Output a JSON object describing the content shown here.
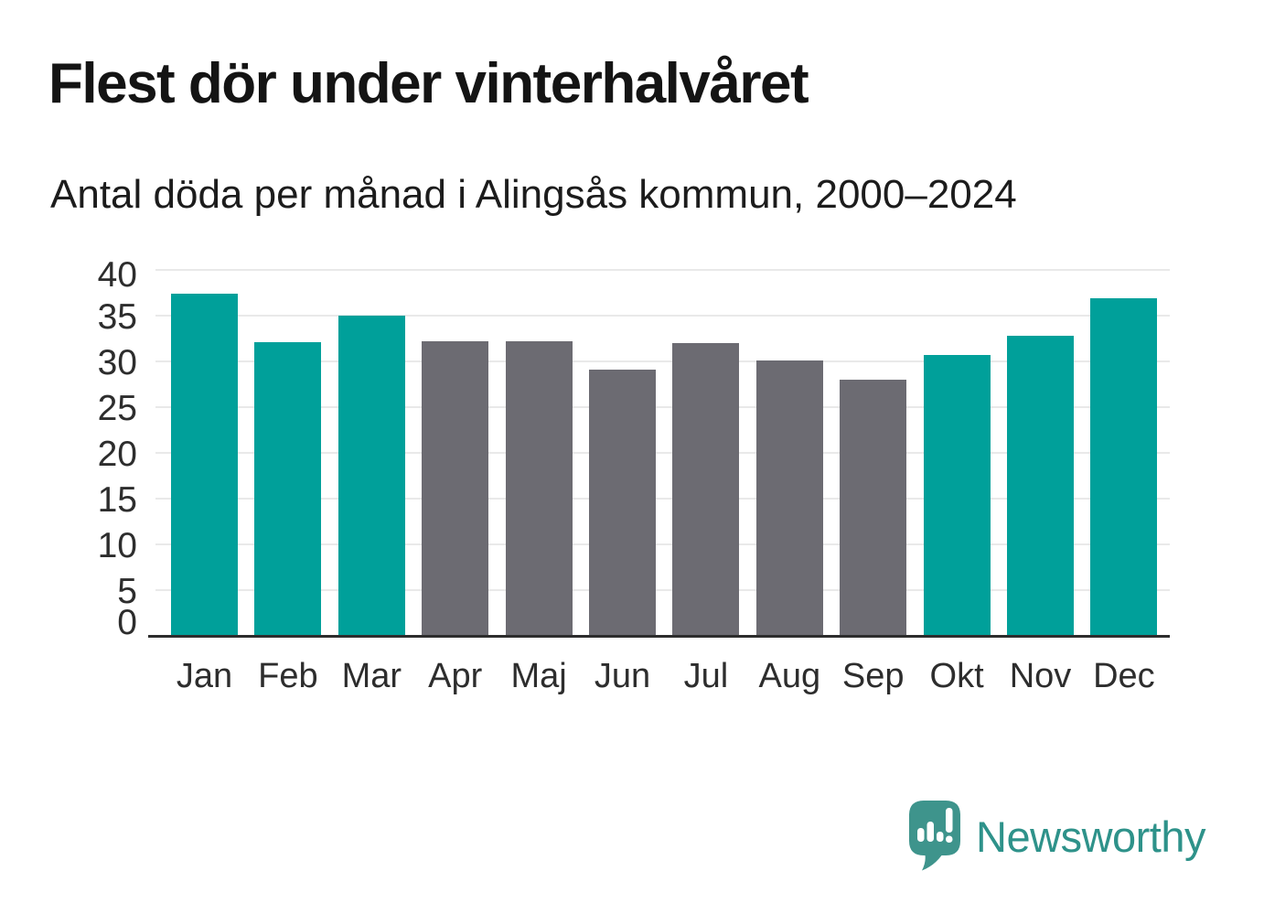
{
  "header": {
    "title": "Flest dör under vinterhalvåret",
    "subtitle": "Antal döda per månad i Alingsås kommun, 2000–2024"
  },
  "chart_data": {
    "type": "bar",
    "title": "Flest dör under vinterhalvåret",
    "subtitle": "Antal döda per månad i Alingsås kommun, 2000–2024",
    "categories": [
      "Jan",
      "Feb",
      "Mar",
      "Apr",
      "Maj",
      "Jun",
      "Jul",
      "Aug",
      "Sep",
      "Okt",
      "Nov",
      "Dec"
    ],
    "values": [
      37.4,
      32.1,
      35.0,
      32.2,
      32.2,
      29.1,
      32.0,
      30.1,
      28.0,
      30.7,
      32.8,
      36.9
    ],
    "highlight_flags": [
      true,
      true,
      true,
      false,
      false,
      false,
      false,
      false,
      false,
      true,
      true,
      true
    ],
    "highlighted_months": [
      "Jan",
      "Feb",
      "Mar",
      "Okt",
      "Nov",
      "Dec"
    ],
    "colors": {
      "highlight": "#00A09A",
      "muted": "#6C6B72",
      "grid": "#E9E9E9",
      "axis": "#2D2D2D",
      "tick_text": "#2D2D2D"
    },
    "ylim": [
      0,
      40
    ],
    "yticks": [
      0,
      5,
      10,
      15,
      20,
      25,
      30,
      35,
      40
    ],
    "grid": "horizontal",
    "legend": "none"
  },
  "footer": {
    "brand": "Newsworthy",
    "brand_color": "#2E928A",
    "logo_icon": "speech-bubble-bar-chart-exclamation",
    "logo_color": "#3E948C"
  }
}
